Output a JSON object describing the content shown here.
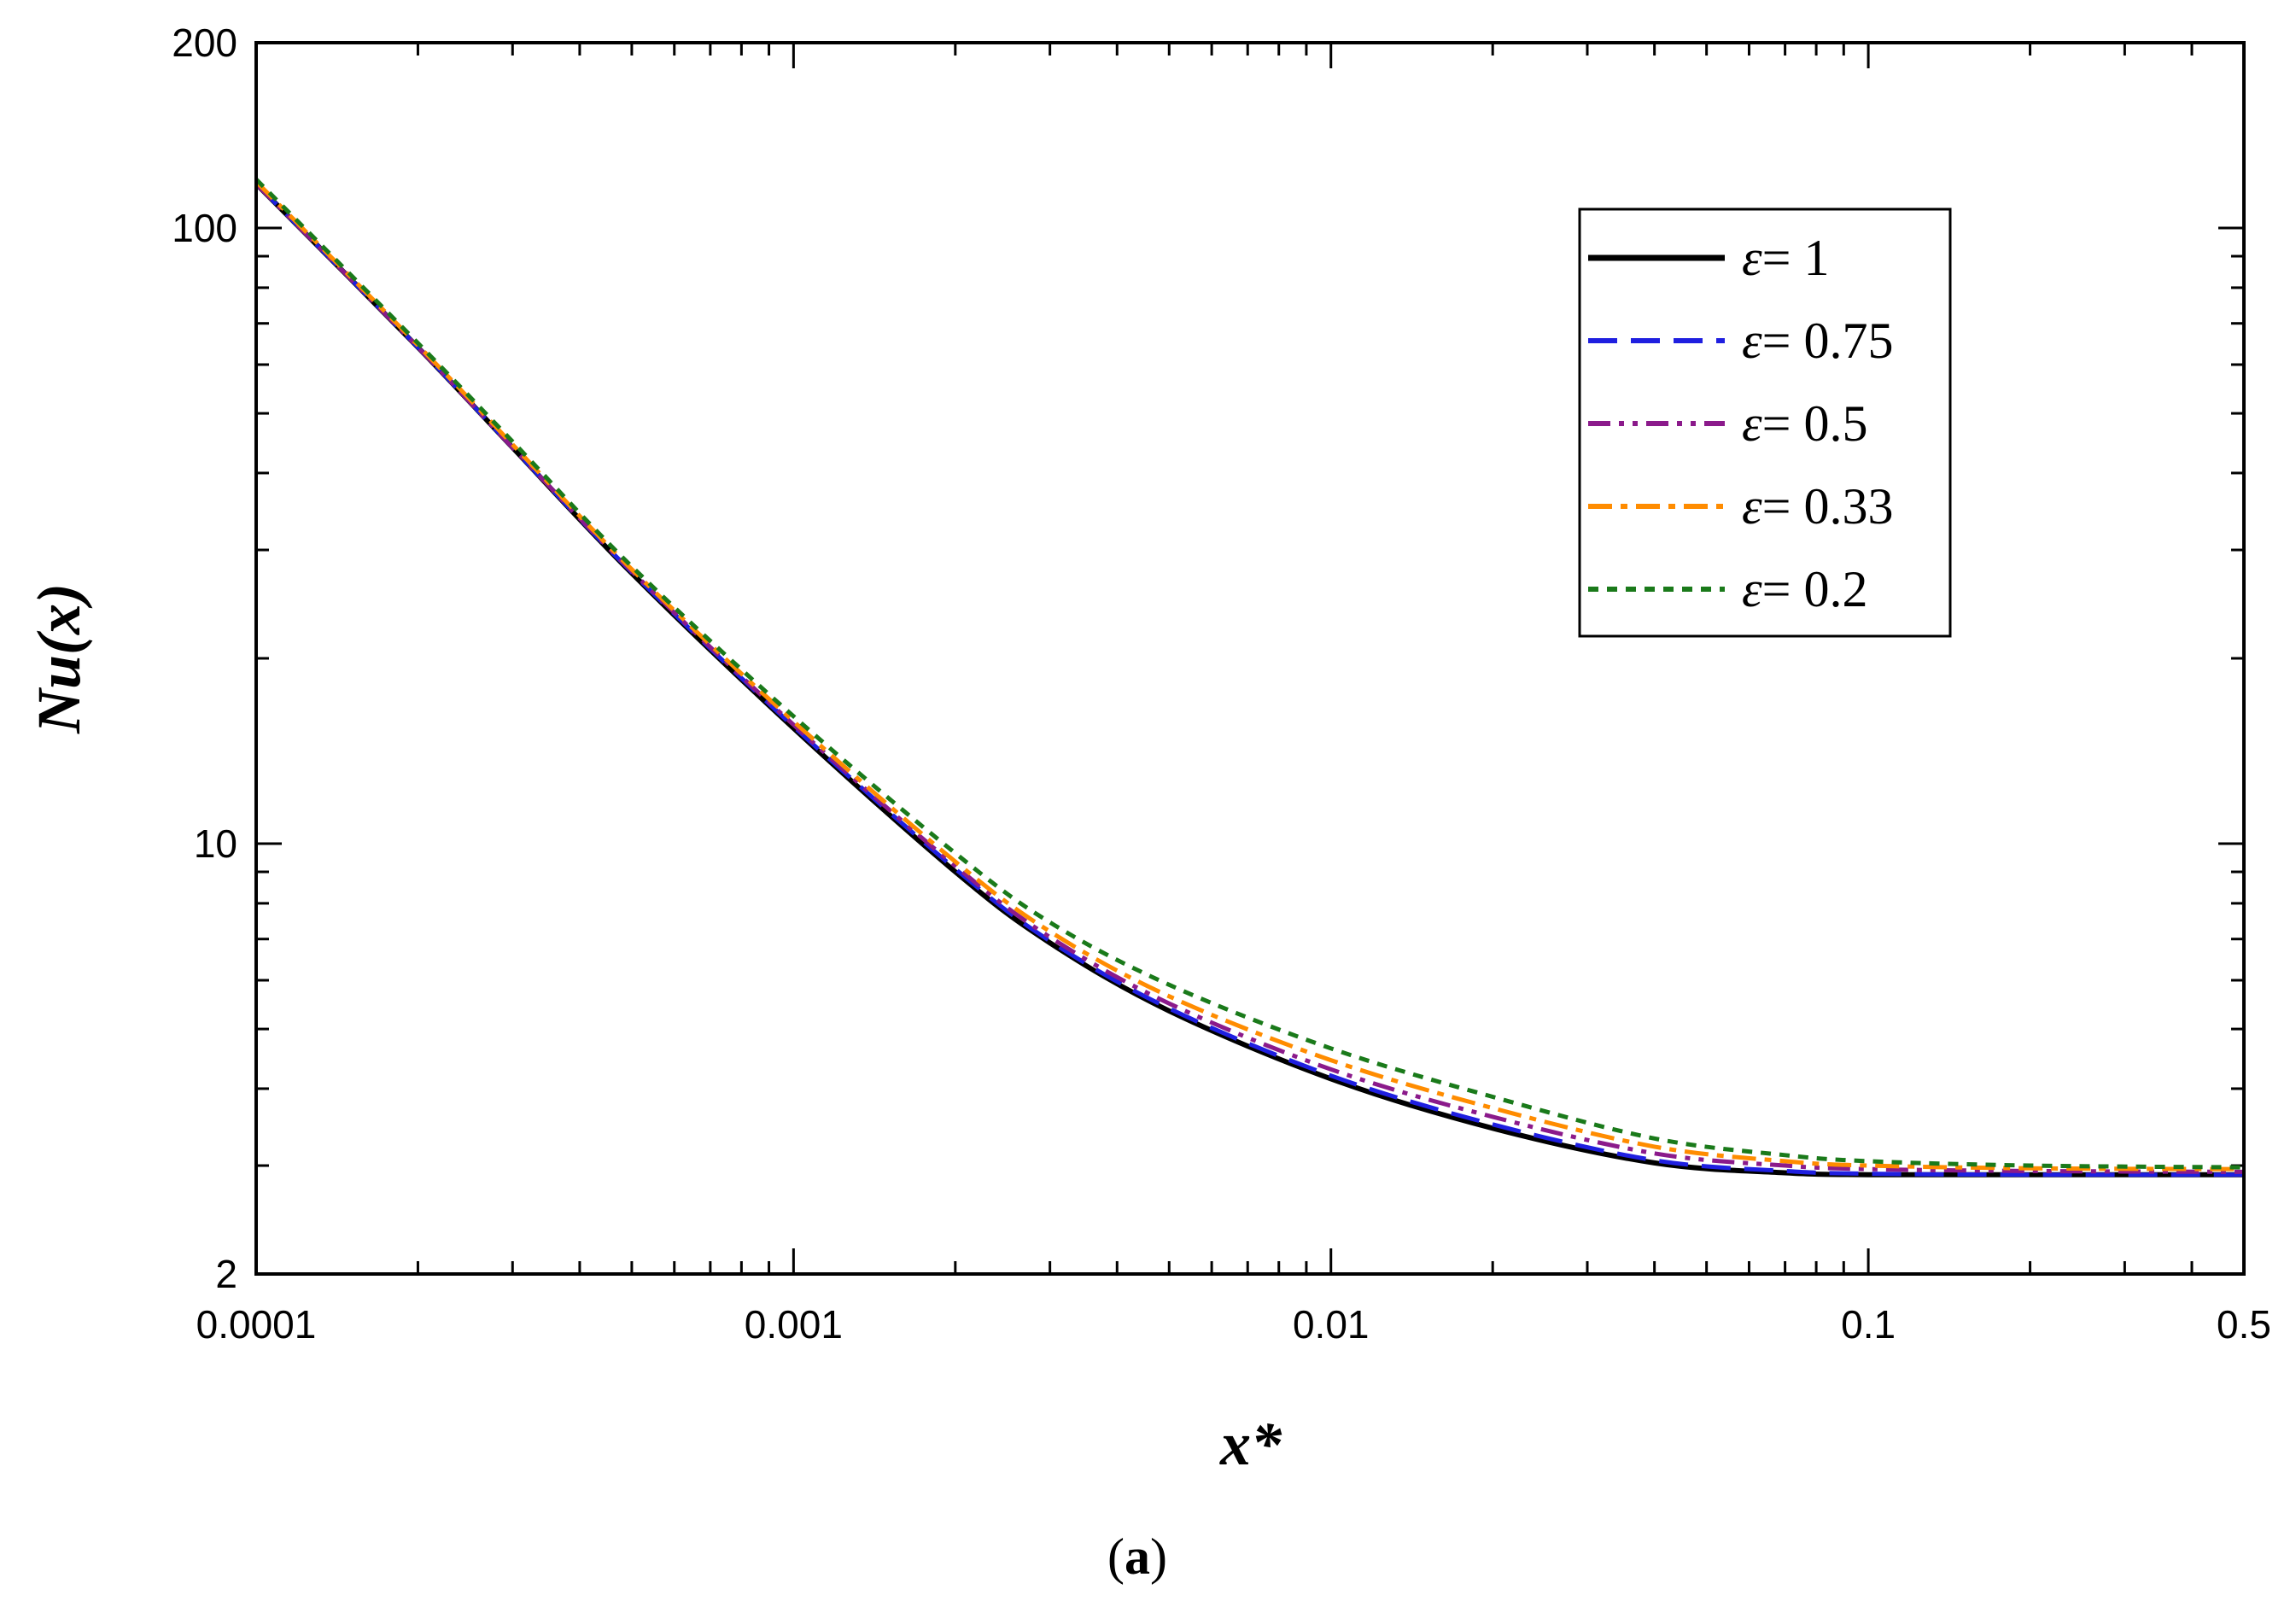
{
  "chart_data": {
    "type": "line",
    "xlabel": "x*",
    "ylabel": "Nu(x)",
    "x_scale": "log",
    "y_scale": "log",
    "xlim": [
      0.0001,
      0.5
    ],
    "ylim": [
      2,
      200
    ],
    "x_ticks": [
      "0.0001",
      "0.001",
      "0.01",
      "0.1",
      "0.5"
    ],
    "y_ticks": [
      "200",
      "100",
      "10",
      "2"
    ],
    "grid": false,
    "legend_position": "top-right",
    "panel_label": {
      "open": "(",
      "letter": "a",
      "close": ")"
    },
    "x": [
      0.0001,
      0.0002,
      0.0003,
      0.0005,
      0.001,
      0.002,
      0.003,
      0.005,
      0.01,
      0.02,
      0.04,
      0.07,
      0.1,
      0.2,
      0.5
    ],
    "series": [
      {
        "name": "ε = 1",
        "legend_prefix": "ε",
        "legend_value": "= 1",
        "color": "#000000",
        "dash": "solid",
        "values": [
          118,
          64,
          44,
          27.5,
          15.4,
          9.0,
          6.9,
          5.35,
          4.15,
          3.45,
          3.03,
          2.92,
          2.9,
          2.9,
          2.9
        ]
      },
      {
        "name": "ε = 0.75",
        "legend_prefix": "ε",
        "legend_value": "= 0.75",
        "color": "#1f1fe0",
        "dash": "dash",
        "values": [
          118,
          64,
          44,
          27.6,
          15.5,
          9.1,
          6.95,
          5.4,
          4.2,
          3.5,
          3.06,
          2.94,
          2.91,
          2.9,
          2.9
        ]
      },
      {
        "name": "ε = 0.5",
        "legend_prefix": "ε",
        "legend_value": "= 0.5",
        "color": "#8b1a8b",
        "dash": "dashdotdot",
        "values": [
          118,
          64,
          44,
          27.7,
          15.6,
          9.2,
          7.05,
          5.5,
          4.3,
          3.6,
          3.14,
          3.0,
          2.96,
          2.94,
          2.93
        ]
      },
      {
        "name": "ε = 0.33",
        "legend_prefix": "ε",
        "legend_value": "= 0.33",
        "color": "#ff8c00",
        "dash": "dashdot",
        "values": [
          119,
          64.5,
          44.5,
          27.9,
          15.8,
          9.35,
          7.2,
          5.65,
          4.45,
          3.72,
          3.22,
          3.05,
          3.0,
          2.97,
          2.96
        ]
      },
      {
        "name": "ε = 0.2",
        "legend_prefix": "ε",
        "legend_value": "= 0.2",
        "color": "#1a7a1a",
        "dash": "dot",
        "values": [
          120,
          65,
          45,
          28.2,
          16.1,
          9.65,
          7.45,
          5.9,
          4.65,
          3.88,
          3.32,
          3.12,
          3.05,
          3.0,
          2.98
        ]
      }
    ]
  }
}
